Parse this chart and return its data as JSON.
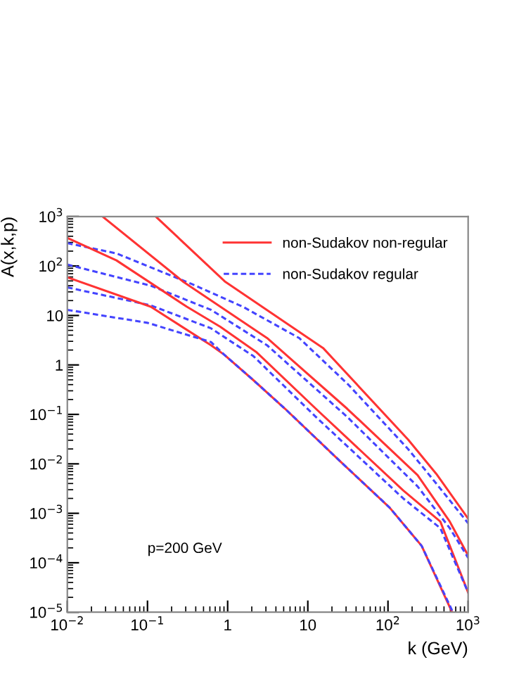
{
  "chart_data": {
    "type": "line",
    "xlabel": "k (GeV)",
    "ylabel": "A(x,k,p)",
    "log": "xy",
    "grid": false,
    "legend": "top right",
    "marker": "none",
    "xlim": [
      0.01,
      1000
    ],
    "ylim": [
      1e-05,
      1000
    ],
    "xticks": [
      {
        "value": 0.01,
        "label": "10$^{−2}$"
      },
      {
        "value": 0.1,
        "label": "10$^{−1}$"
      },
      1,
      10,
      {
        "value": 100,
        "label": "10$^{2}$"
      },
      {
        "value": 1000,
        "label": "10$^{3}$"
      }
    ],
    "yticks": [
      {
        "value": 1e-05,
        "label": "10$^{−5}$"
      },
      {
        "value": 0.0001,
        "label": "10$^{−4}$"
      },
      {
        "value": 0.001,
        "label": "10$^{−3}$"
      },
      {
        "value": 0.01,
        "label": "10$^{−2}$"
      },
      {
        "value": 0.1,
        "label": "10$^{−1}$"
      },
      1,
      10,
      {
        "value": 100,
        "label": "10$^{2}$"
      },
      {
        "value": 1000,
        "label": "10$^{3}$"
      }
    ],
    "annotations": [
      "p=200 GeV"
    ],
    "series": [
      {
        "name": "non-Sudakov non-regular",
        "color": "#ff3333",
        "line_style": "solid",
        "x": [
          0.127,
          0.92,
          15.5,
          178,
          400,
          1000
        ],
        "values": [
          1000,
          49,
          2.2,
          0.031,
          0.0063,
          0.00078
        ]
      },
      {
        "name": "non-Sudakov regular",
        "color": "#4444ff",
        "line_style": "dashed",
        "x": [
          0.01,
          0.041,
          0.36,
          1.55,
          7.8,
          32,
          178,
          400,
          1000
        ],
        "values": [
          290,
          180,
          43,
          15,
          3.5,
          0.4,
          0.02,
          0.004,
          0.00063
        ]
      },
      {
        "color": "#ff3333",
        "line_style": "solid",
        "x": [
          0.0275,
          0.275,
          3.1,
          31,
          234,
          590,
          1000
        ],
        "values": [
          1000,
          49,
          3.5,
          0.13,
          0.0059,
          0.00068,
          0.00014
        ]
      },
      {
        "color": "#4444ff",
        "line_style": "dashed",
        "x": [
          0.01,
          0.11,
          0.62,
          3.1,
          31,
          234,
          590,
          1000
        ],
        "values": [
          107,
          40,
          13,
          2.5,
          0.089,
          0.0035,
          0.0005,
          0.000126
        ]
      },
      {
        "color": "#ff3333",
        "line_style": "solid",
        "x": [
          0.01,
          0.041,
          0.31,
          0.81,
          2.3,
          12.6,
          155,
          450,
          1000
        ],
        "values": [
          370,
          130,
          15,
          5.9,
          1.8,
          0.13,
          0.0029,
          0.00068,
          2.5e-05
        ]
      },
      {
        "color": "#4444ff",
        "line_style": "dashed",
        "x": [
          0.01,
          0.11,
          0.62,
          2.1,
          12.6,
          155,
          450,
          1000
        ],
        "values": [
          37,
          16,
          5.5,
          1.5,
          0.089,
          0.002,
          0.0005,
          2.5e-05
        ]
      },
      {
        "color": "#ff3333",
        "line_style": "solid",
        "x": [
          0.01,
          0.11,
          0.62,
          0.91,
          2.1,
          5.2,
          25,
          105,
          263,
          631
        ],
        "values": [
          59,
          15,
          2.5,
          1.6,
          0.49,
          0.13,
          0.0115,
          0.0013,
          0.00022,
          1e-05
        ]
      },
      {
        "color": "#4444ff",
        "line_style": "dashed",
        "x": [
          0.01,
          0.1,
          0.62,
          0.91,
          2.1,
          5.2,
          25,
          105,
          263,
          646
        ],
        "values": [
          13,
          7.1,
          2.9,
          1.6,
          0.49,
          0.13,
          0.0115,
          0.0013,
          0.00022,
          1e-05
        ]
      }
    ]
  }
}
